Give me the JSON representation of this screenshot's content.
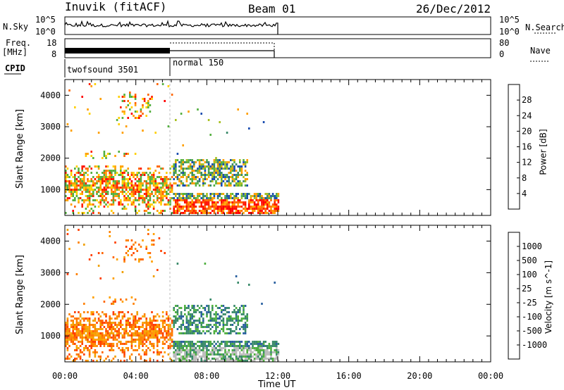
{
  "header": {
    "title": "Inuvik (fitACF)",
    "beam": "Beam 01",
    "date": "26/Dec/2012"
  },
  "ticks_left": {
    "nsky_top": "10^5",
    "nsky_bot": "10^0",
    "freq_top": "18",
    "freq_bot": "8"
  },
  "ticks_right": {
    "nsearch_top": "10^5",
    "nsearch_bot": "10^0",
    "nave_top": "80",
    "nave_bot": "0"
  },
  "labels": {
    "nsky": "N.Sky",
    "freq": "Freq.",
    "mhz": "[MHz]",
    "cpid": "CPID",
    "nsearch": "N.Search",
    "nave": "Nave",
    "ylabel": "Slant Range [km]",
    "xlabel": "Time UT",
    "power_cb": "Power [dB]",
    "velocity_cb": "Velocity [m s^-1]"
  },
  "cpid": [
    {
      "label": "twofsound 3501",
      "start_hour": 0
    },
    {
      "label": "normal 150",
      "start_hour": 6
    }
  ],
  "chart_data": [
    {
      "type": "heatmap",
      "title": "Power",
      "xlabel": "Time UT",
      "ylabel": "Slant Range [km]",
      "x_ticks": [
        "00:00",
        "04:00",
        "08:00",
        "12:00",
        "16:00",
        "20:00",
        "00:00"
      ],
      "x_range_hours": [
        0,
        24
      ],
      "data_end_hour": 12,
      "y_ticks": [
        "1000",
        "2000",
        "3000",
        "4000"
      ],
      "y_range_km": [
        180,
        4500
      ],
      "colorbar": {
        "label": "Power [dB]",
        "ticks": [
          "4",
          "8",
          "12",
          "16",
          "20",
          "24",
          "28"
        ],
        "colors": [
          "#0000ff",
          "#1a4db0",
          "#3a8a6a",
          "#55b040",
          "#a8c020",
          "#ffa000",
          "#ff6600",
          "#ff0000"
        ]
      }
    },
    {
      "type": "heatmap",
      "title": "Velocity",
      "xlabel": "Time UT",
      "ylabel": "Slant Range [km]",
      "x_ticks": [
        "00:00",
        "04:00",
        "08:00",
        "12:00",
        "16:00",
        "20:00",
        "00:00"
      ],
      "x_range_hours": [
        0,
        24
      ],
      "data_end_hour": 12,
      "y_ticks": [
        "1000",
        "2000",
        "3000",
        "4000"
      ],
      "y_range_km": [
        180,
        4500
      ],
      "colorbar": {
        "label": "Velocity [m s^-1]",
        "ticks": [
          "1000",
          "500",
          "100",
          "25",
          "-25",
          "-100",
          "-500",
          "-1000"
        ],
        "colors": [
          "#1030c0",
          "#2a60a0",
          "#3a8a6a",
          "#50b040",
          "#bcbcbc",
          "#f0a000",
          "#ff6600",
          "#ff2000",
          "#ff0000"
        ]
      }
    }
  ]
}
